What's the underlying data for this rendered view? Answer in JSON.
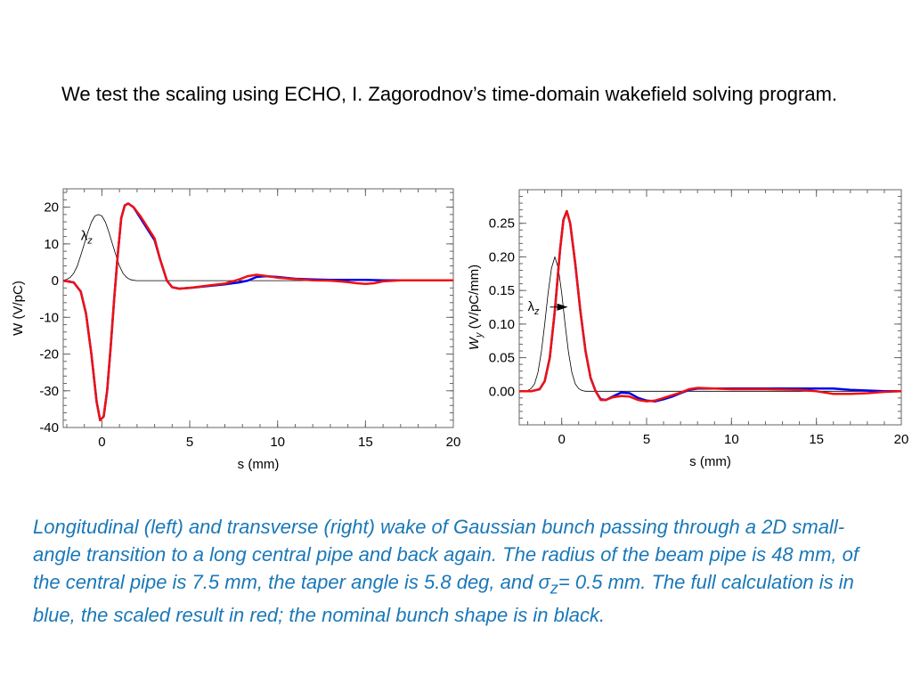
{
  "intro_text": "We test the scaling using ECHO, I. Zagorodnov’s time-domain wakefield solving program.",
  "caption": {
    "part1": "Longitudinal (left) and transverse (right) wake of Gaussian bunch passing through a 2D small-angle transition to a long central pipe and back again. The radius of the beam pipe is 48 mm, of the central pipe is 7.5 mm, the taper angle is 5.8 deg, and ",
    "sigma": "σ",
    "sigma_sub": "z",
    "part2": "= 0.5 mm. The full calculation is in blue, the scaled result in red; the nominal bunch shape is in black.",
    "color": "#1a78b8"
  },
  "chart_data": [
    {
      "type": "line",
      "panel": "left",
      "xlabel": "s (mm)",
      "ylabel": "W (V/pC)",
      "xlim": [
        -2.2,
        20
      ],
      "ylim": [
        -40,
        25
      ],
      "xticks": [
        0,
        5,
        10,
        15,
        20
      ],
      "xtick_labels": [
        "0",
        "5",
        "10",
        "15",
        "20"
      ],
      "yticks": [
        -40,
        -30,
        -20,
        -10,
        0,
        10,
        20
      ],
      "ytick_labels": [
        "-40",
        "-30",
        "-20",
        "-10",
        "0",
        "10",
        "20"
      ],
      "annotation": {
        "text": "λ",
        "sub": "z",
        "x": -1.2,
        "y": 11
      },
      "series": [
        {
          "color": "#0000ee",
          "width": 2.5,
          "points": [
            [
              -2.2,
              0
            ],
            [
              -1.6,
              -0.5
            ],
            [
              -1.2,
              -3
            ],
            [
              -0.9,
              -9
            ],
            [
              -0.6,
              -20
            ],
            [
              -0.3,
              -33
            ],
            [
              -0.1,
              -38
            ],
            [
              0.1,
              -37
            ],
            [
              0.3,
              -30
            ],
            [
              0.5,
              -18
            ],
            [
              0.7,
              -5
            ],
            [
              0.9,
              7
            ],
            [
              1.1,
              17
            ],
            [
              1.3,
              20.5
            ],
            [
              1.5,
              21
            ],
            [
              1.8,
              20
            ],
            [
              2.2,
              17
            ],
            [
              2.6,
              14
            ],
            [
              3,
              11
            ],
            [
              3.3,
              6
            ],
            [
              3.7,
              0
            ],
            [
              4,
              -1.8
            ],
            [
              4.4,
              -2.2
            ],
            [
              5,
              -2
            ],
            [
              6,
              -1.5
            ],
            [
              7,
              -1
            ],
            [
              7.8,
              -0.5
            ],
            [
              8.3,
              0
            ],
            [
              8.8,
              1
            ],
            [
              9.3,
              1.2
            ],
            [
              10,
              1
            ],
            [
              11,
              0.5
            ],
            [
              12,
              0.3
            ],
            [
              13,
              0.2
            ],
            [
              14,
              0.2
            ],
            [
              15,
              0.2
            ],
            [
              16,
              0.1
            ],
            [
              17,
              0.1
            ],
            [
              18,
              0.1
            ],
            [
              19,
              0.1
            ],
            [
              20,
              0.1
            ]
          ]
        },
        {
          "color": "#ee1111",
          "width": 2.5,
          "points": [
            [
              -2.2,
              0
            ],
            [
              -1.6,
              -0.5
            ],
            [
              -1.2,
              -3
            ],
            [
              -0.9,
              -9
            ],
            [
              -0.6,
              -20
            ],
            [
              -0.3,
              -33
            ],
            [
              -0.1,
              -38
            ],
            [
              0.1,
              -37
            ],
            [
              0.3,
              -30
            ],
            [
              0.5,
              -18
            ],
            [
              0.7,
              -5
            ],
            [
              0.9,
              7
            ],
            [
              1.1,
              17
            ],
            [
              1.3,
              20.5
            ],
            [
              1.5,
              21
            ],
            [
              1.8,
              20
            ],
            [
              2.2,
              17.5
            ],
            [
              2.6,
              14.5
            ],
            [
              3,
              11.5
            ],
            [
              3.3,
              6
            ],
            [
              3.7,
              0
            ],
            [
              4,
              -1.8
            ],
            [
              4.4,
              -2.2
            ],
            [
              5,
              -2
            ],
            [
              6,
              -1.4
            ],
            [
              7,
              -0.8
            ],
            [
              7.8,
              0.3
            ],
            [
              8.3,
              1.2
            ],
            [
              8.8,
              1.6
            ],
            [
              9.3,
              1.3
            ],
            [
              10,
              0.8
            ],
            [
              11,
              0.4
            ],
            [
              12,
              0.1
            ],
            [
              13,
              0
            ],
            [
              14,
              -0.4
            ],
            [
              14.5,
              -0.7
            ],
            [
              15,
              -0.9
            ],
            [
              15.5,
              -0.7
            ],
            [
              16,
              -0.2
            ],
            [
              17,
              0.1
            ],
            [
              18,
              0.1
            ],
            [
              19,
              0.1
            ],
            [
              20,
              0.1
            ]
          ]
        },
        {
          "color": "#000000",
          "width": 0.8,
          "points": [
            [
              -2.2,
              0.1
            ],
            [
              -2,
              0.3
            ],
            [
              -1.8,
              0.9
            ],
            [
              -1.6,
              2
            ],
            [
              -1.4,
              4
            ],
            [
              -1.2,
              6.9
            ],
            [
              -1,
              10
            ],
            [
              -0.8,
              13.2
            ],
            [
              -0.6,
              15.9
            ],
            [
              -0.4,
              17.6
            ],
            [
              -0.2,
              18
            ],
            [
              0,
              17.6
            ],
            [
              0.2,
              15.9
            ],
            [
              0.4,
              13.2
            ],
            [
              0.6,
              10
            ],
            [
              0.8,
              6.9
            ],
            [
              1,
              4
            ],
            [
              1.2,
              2
            ],
            [
              1.4,
              0.9
            ],
            [
              1.6,
              0.3
            ],
            [
              1.8,
              0.1
            ],
            [
              2,
              0
            ],
            [
              20,
              0
            ]
          ]
        }
      ]
    },
    {
      "type": "line",
      "panel": "right",
      "xlabel": "s (mm)",
      "ylabel": "W",
      "ylabel_sub": "y",
      "ylabel_unit": " (V/pC/mm)",
      "xlim": [
        -2.5,
        20
      ],
      "ylim": [
        -0.05,
        0.3
      ],
      "xticks": [
        0,
        5,
        10,
        15,
        20
      ],
      "xtick_labels": [
        "0",
        "5",
        "10",
        "15",
        "20"
      ],
      "yticks": [
        0,
        0.05,
        0.1,
        0.15,
        0.2,
        0.25
      ],
      "ytick_labels": [
        "0.00",
        "0.05",
        "0.10",
        "0.15",
        "0.20",
        "0.25"
      ],
      "annotation": {
        "text": "λ",
        "sub": "z",
        "x": -2.0,
        "y": 0.12
      },
      "series": [
        {
          "color": "#0000ee",
          "width": 2.5,
          "points": [
            [
              -2.5,
              0
            ],
            [
              -1.8,
              0
            ],
            [
              -1.3,
              0.003
            ],
            [
              -1,
              0.015
            ],
            [
              -0.7,
              0.05
            ],
            [
              -0.4,
              0.12
            ],
            [
              -0.1,
              0.21
            ],
            [
              0.1,
              0.255
            ],
            [
              0.3,
              0.268
            ],
            [
              0.5,
              0.25
            ],
            [
              0.8,
              0.19
            ],
            [
              1.1,
              0.12
            ],
            [
              1.4,
              0.06
            ],
            [
              1.7,
              0.02
            ],
            [
              2,
              0
            ],
            [
              2.3,
              -0.012
            ],
            [
              2.6,
              -0.013
            ],
            [
              3,
              -0.008
            ],
            [
              3.5,
              -0.002
            ],
            [
              4,
              -0.003
            ],
            [
              4.5,
              -0.01
            ],
            [
              5,
              -0.014
            ],
            [
              5.5,
              -0.015
            ],
            [
              6,
              -0.012
            ],
            [
              6.5,
              -0.008
            ],
            [
              7,
              -0.003
            ],
            [
              7.5,
              0.002
            ],
            [
              8,
              0.004
            ],
            [
              9,
              0.004
            ],
            [
              10,
              0.004
            ],
            [
              12,
              0.004
            ],
            [
              14,
              0.004
            ],
            [
              16,
              0.004
            ],
            [
              17,
              0.002
            ],
            [
              18,
              0.001
            ],
            [
              19,
              0
            ],
            [
              20,
              0
            ]
          ]
        },
        {
          "color": "#ee1111",
          "width": 2.5,
          "points": [
            [
              -2.5,
              0
            ],
            [
              -1.8,
              0
            ],
            [
              -1.3,
              0.003
            ],
            [
              -1,
              0.015
            ],
            [
              -0.7,
              0.05
            ],
            [
              -0.4,
              0.12
            ],
            [
              -0.1,
              0.21
            ],
            [
              0.1,
              0.255
            ],
            [
              0.3,
              0.268
            ],
            [
              0.5,
              0.25
            ],
            [
              0.8,
              0.19
            ],
            [
              1.1,
              0.12
            ],
            [
              1.4,
              0.06
            ],
            [
              1.7,
              0.02
            ],
            [
              2,
              0
            ],
            [
              2.3,
              -0.013
            ],
            [
              2.6,
              -0.013
            ],
            [
              3,
              -0.009
            ],
            [
              3.5,
              -0.007
            ],
            [
              4,
              -0.008
            ],
            [
              4.5,
              -0.013
            ],
            [
              5,
              -0.015
            ],
            [
              5.5,
              -0.014
            ],
            [
              6,
              -0.01
            ],
            [
              6.5,
              -0.006
            ],
            [
              7,
              -0.002
            ],
            [
              7.5,
              0.003
            ],
            [
              8,
              0.005
            ],
            [
              9,
              0.004
            ],
            [
              10,
              0.003
            ],
            [
              12,
              0.003
            ],
            [
              14,
              0.002
            ],
            [
              15,
              0
            ],
            [
              16,
              -0.004
            ],
            [
              17,
              -0.004
            ],
            [
              18,
              -0.003
            ],
            [
              19,
              -0.001
            ],
            [
              20,
              0
            ]
          ]
        },
        {
          "color": "#000000",
          "width": 0.8,
          "points": [
            [
              -2.5,
              0
            ],
            [
              -2,
              0.001
            ],
            [
              -1.8,
              0.004
            ],
            [
              -1.6,
              0.011
            ],
            [
              -1.4,
              0.028
            ],
            [
              -1.2,
              0.058
            ],
            [
              -1,
              0.1
            ],
            [
              -0.8,
              0.146
            ],
            [
              -0.6,
              0.183
            ],
            [
              -0.4,
              0.2
            ],
            [
              -0.2,
              0.183
            ],
            [
              0,
              0.146
            ],
            [
              0.2,
              0.1
            ],
            [
              0.4,
              0.058
            ],
            [
              0.6,
              0.028
            ],
            [
              0.8,
              0.011
            ],
            [
              1,
              0.004
            ],
            [
              1.2,
              0.001
            ],
            [
              1.4,
              0
            ],
            [
              20,
              0
            ]
          ]
        }
      ]
    }
  ]
}
